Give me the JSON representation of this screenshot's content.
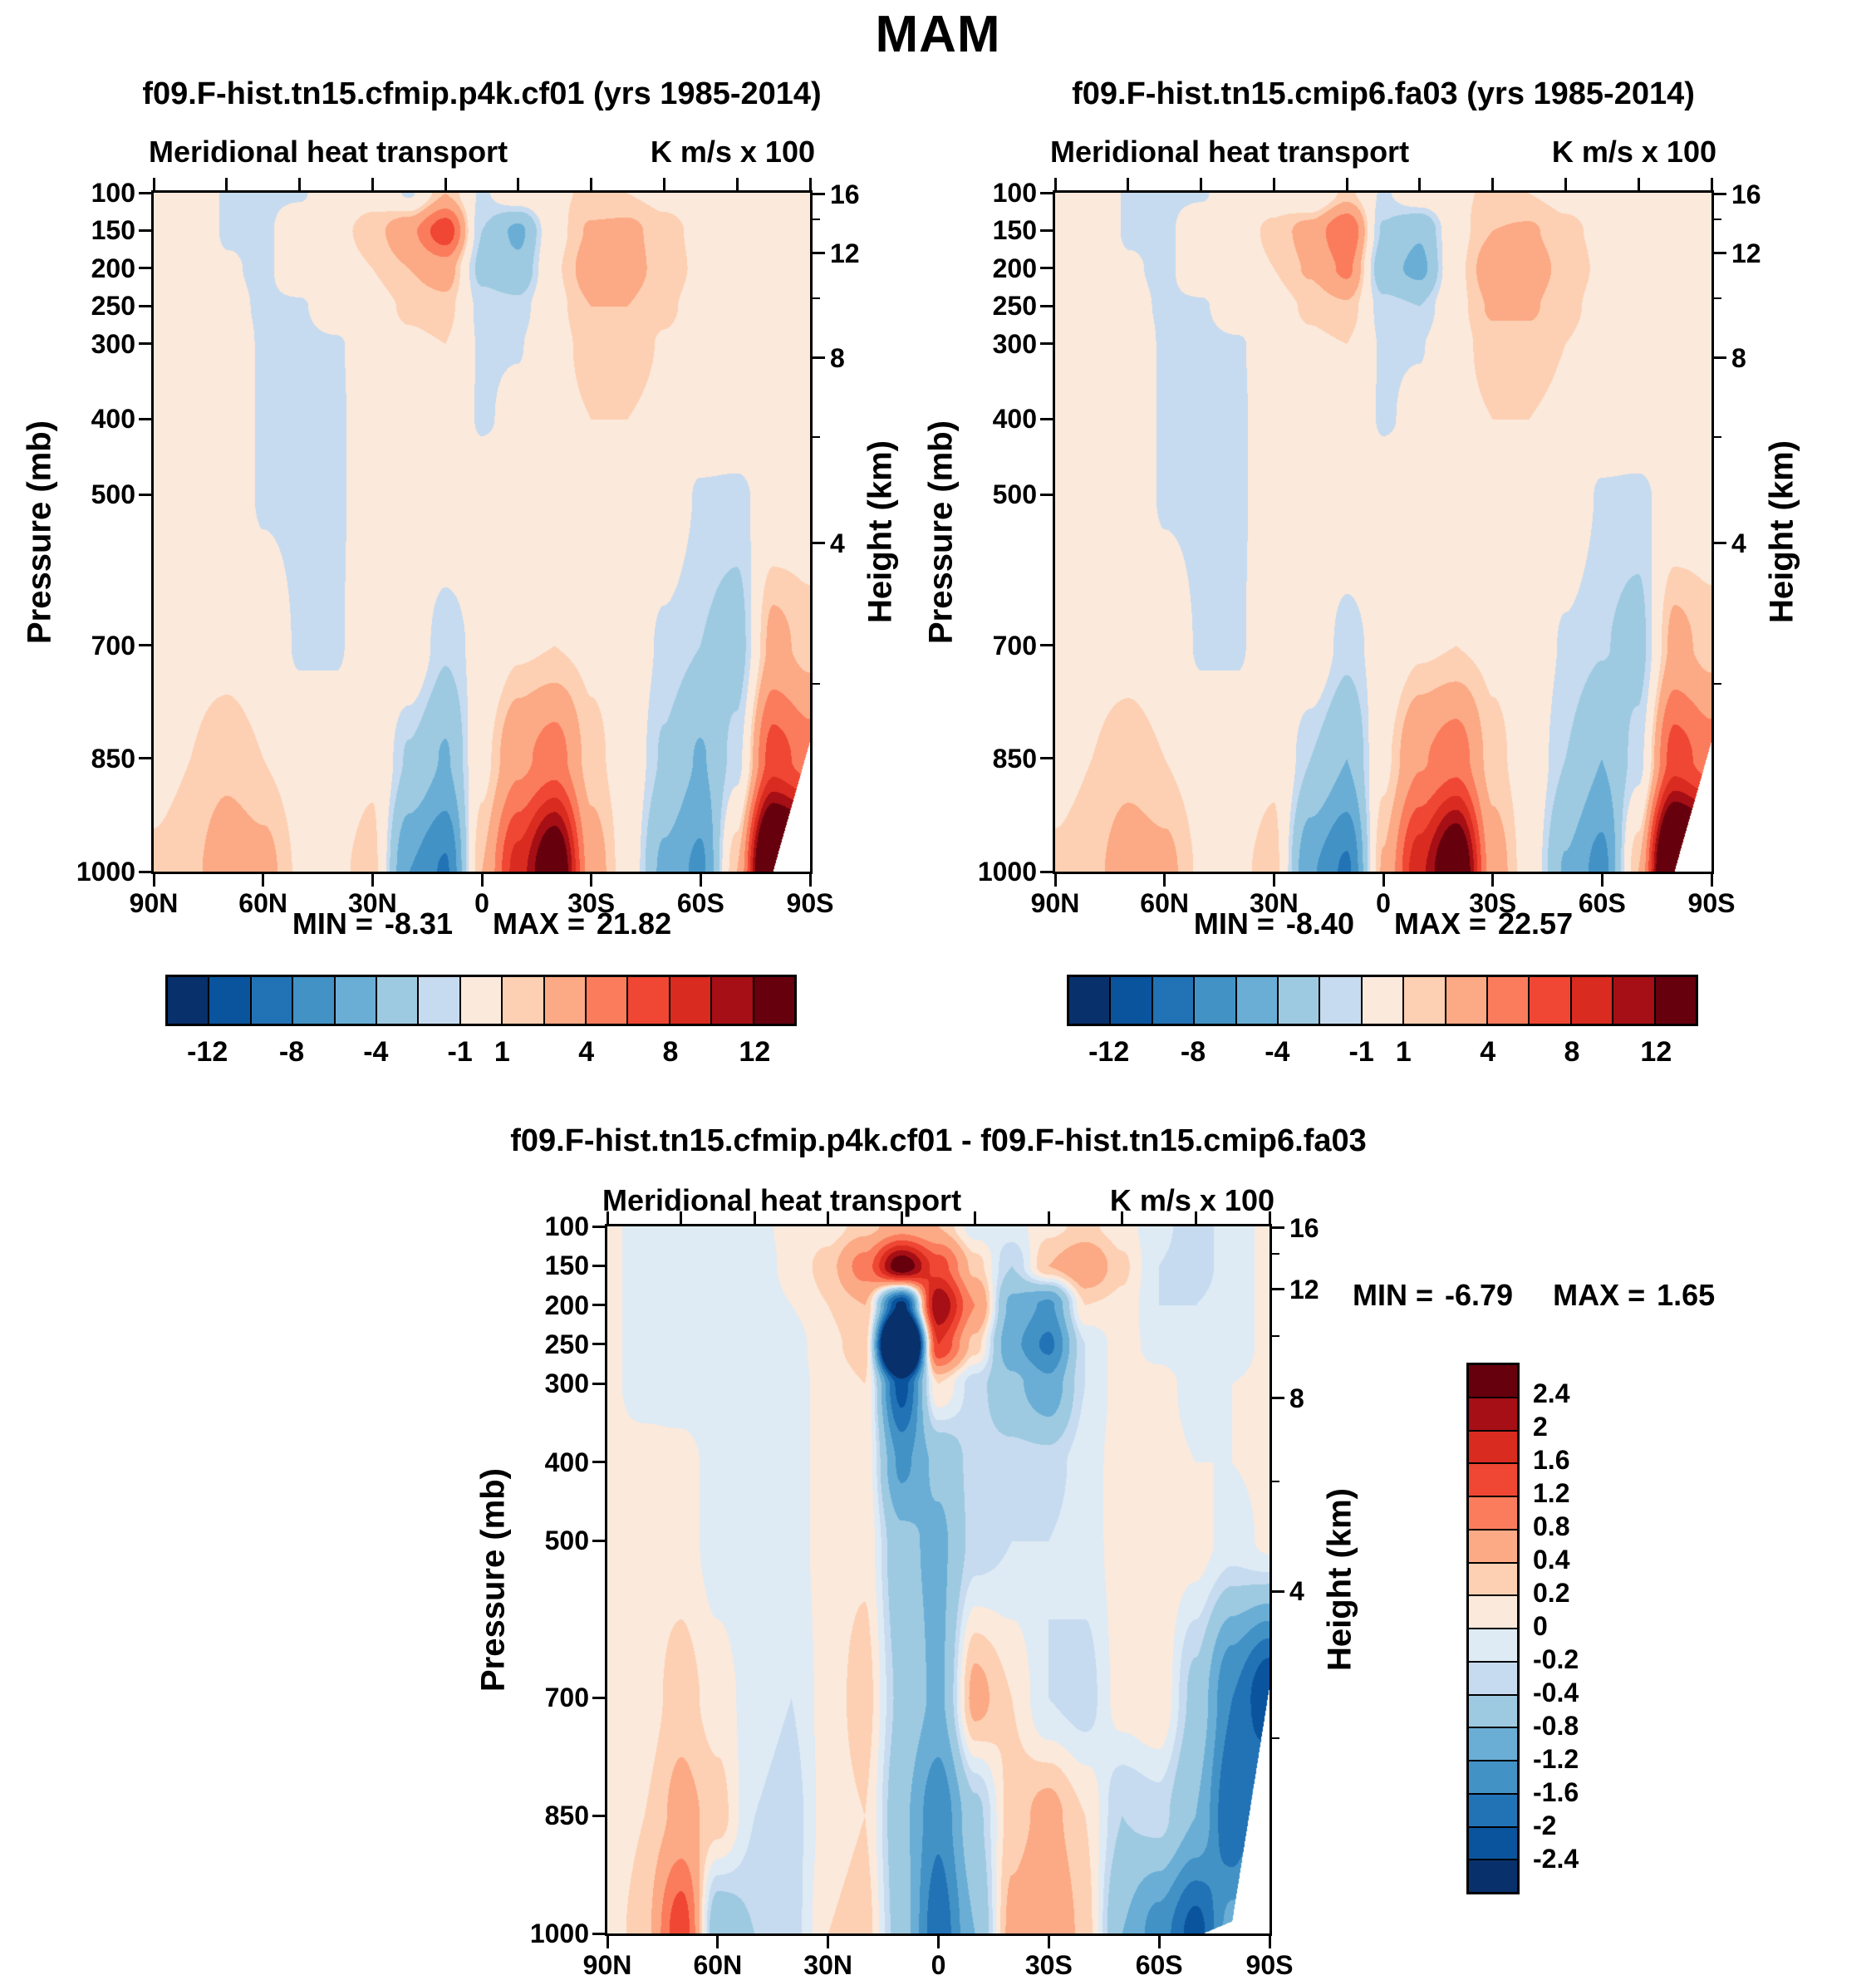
{
  "title": "MAM",
  "axes": {
    "pressure_label": "Pressure (mb)",
    "height_label": "Height (km)",
    "pressure_ticks": [
      100,
      150,
      200,
      250,
      300,
      400,
      500,
      700,
      850,
      1000
    ],
    "height_ticks": [
      16,
      12,
      8,
      4
    ],
    "lat_tick_labels": [
      "90N",
      "60N",
      "30N",
      "0",
      "30S",
      "60S",
      "90S"
    ],
    "lat_tick_values": [
      90,
      60,
      30,
      0,
      -30,
      -60,
      -90
    ]
  },
  "panels": [
    {
      "title": "f09.F-hist.tn15.cfmip.p4k.cf01 (yrs 1985-2014)",
      "subtitle": "Meridional heat transport",
      "units": "K m/s x 100",
      "stats": {
        "min_label": "MIN =",
        "min": "-8.31",
        "max_label": "MAX =",
        "max": "21.82"
      }
    },
    {
      "title": "f09.F-hist.tn15.cmip6.fa03 (yrs 1985-2014)",
      "subtitle": "Meridional heat transport",
      "units": "K m/s x 100",
      "stats": {
        "min_label": "MIN =",
        "min": "-8.40",
        "max_label": "MAX =",
        "max": "22.57"
      }
    },
    {
      "title": "f09.F-hist.tn15.cfmip.p4k.cf01 - f09.F-hist.tn15.cmip6.fa03",
      "subtitle": "Meridional heat transport",
      "units": "K m/s x 100",
      "stats": {
        "min_label": "MIN =",
        "min": "-6.79",
        "max_label": "MAX =",
        "max": "1.65"
      }
    }
  ],
  "colorbars": {
    "main": {
      "orientation": "horizontal",
      "cell_colors": [
        "#08306B",
        "#0A549E",
        "#2272B6",
        "#4292C6",
        "#6AAED6",
        "#9DCAE1",
        "#C6DBEF",
        "#FBE9DC",
        "#FDD0B3",
        "#FCA985",
        "#FB7C5C",
        "#EF4733",
        "#D92B20",
        "#A50F15",
        "#67000D"
      ],
      "tick_labels": [
        "-12",
        "-8",
        "-4",
        "-1",
        "1",
        "4",
        "8",
        "12"
      ],
      "tick_positions_fifteenths": [
        1,
        3,
        5,
        7,
        8,
        10,
        12,
        14
      ]
    },
    "diff": {
      "orientation": "vertical",
      "cell_colors": [
        "#08306B",
        "#0A549E",
        "#2272B6",
        "#4292C6",
        "#6AAED6",
        "#9DCAE1",
        "#C6DBEF",
        "#DEEBF5",
        "#FBE9DC",
        "#FDD0B3",
        "#FCA985",
        "#FB7C5C",
        "#EF4733",
        "#D92B20",
        "#A50F15",
        "#67000D"
      ],
      "tick_labels_top_to_bottom": [
        "2.4",
        "2",
        "1.6",
        "1.2",
        "0.8",
        "0.4",
        "0.2",
        "0",
        "-0.2",
        "-0.4",
        "-0.8",
        "-1.2",
        "-1.6",
        "-2",
        "-2.4"
      ]
    }
  },
  "chart_data": [
    {
      "type": "heatmap",
      "name": "f09.F-hist.tn15.cfmip.p4k.cf01",
      "season": "MAM",
      "variable": "Meridional heat transport",
      "units": "K m/s x 100",
      "x_axis": "latitude, 90N (left) to 90S (right)",
      "y_axis": "pressure (mb), 100 (top) to 1000 (bottom), linear in pressure",
      "min": -8.31,
      "max": 21.82,
      "contour_levels": [
        -12,
        -10,
        -8,
        -6,
        -4,
        -2,
        -1,
        1,
        2,
        4,
        6,
        8,
        10,
        12
      ],
      "lats": [
        90,
        80,
        70,
        60,
        50,
        40,
        30,
        20,
        10,
        0,
        -10,
        -20,
        -30,
        -40,
        -50,
        -60,
        -70,
        -80,
        -90
      ],
      "pressure_levels": [
        100,
        150,
        200,
        250,
        300,
        400,
        500,
        700,
        850,
        1000
      ],
      "surface_pressure": [
        1010,
        1010,
        1010,
        1010,
        1010,
        1010,
        1010,
        1010,
        1010,
        1010,
        1010,
        1010,
        1010,
        1010,
        1010,
        1010,
        1008,
        1000,
        830
      ],
      "values": [
        [
          0.4,
          0.6,
          -1.2,
          -1.3,
          -1.2,
          0.4,
          0.6,
          -1.2,
          2.0,
          -1.2,
          0.3,
          0.8,
          1.2,
          1.0,
          0.6,
          0.4,
          0.3,
          0.2,
          0.2
        ],
        [
          0.3,
          0.5,
          -1.2,
          -1.3,
          0.2,
          0.7,
          1.4,
          3.5,
          7.5,
          -2.0,
          -4.5,
          0.5,
          2.2,
          2.4,
          1.4,
          0.7,
          0.4,
          0.3,
          0.2
        ],
        [
          0.2,
          0.4,
          -0.8,
          -1.3,
          0.2,
          0.5,
          1.0,
          2.0,
          3.0,
          -2.5,
          -3.5,
          0.8,
          2.8,
          2.6,
          1.5,
          0.8,
          0.4,
          0.3,
          0.2
        ],
        [
          0.2,
          0.3,
          -0.5,
          -1.2,
          -1.2,
          0.2,
          0.5,
          1.2,
          1.5,
          -1.4,
          -1.6,
          0.6,
          2.0,
          2.0,
          1.2,
          0.6,
          0.3,
          0.2,
          0.1
        ],
        [
          0.2,
          0.3,
          0.2,
          -1.2,
          -1.4,
          -1.2,
          0.2,
          0.8,
          1.0,
          -1.2,
          -1.1,
          0.5,
          1.5,
          1.5,
          0.9,
          0.5,
          0.3,
          0.2,
          0.1
        ],
        [
          0.2,
          0.3,
          0.2,
          -1.2,
          -1.5,
          -1.2,
          -0.2,
          0.5,
          0.7,
          -1.2,
          -0.5,
          0.5,
          1.0,
          1.0,
          0.7,
          0.3,
          0.2,
          0.1,
          0.1
        ],
        [
          0.2,
          0.3,
          0.2,
          -1.2,
          -1.4,
          -1.2,
          -0.2,
          0.4,
          0.6,
          0.4,
          0.5,
          0.5,
          0.8,
          0.8,
          0.4,
          -1.2,
          -1.3,
          -0.3,
          0.1
        ],
        [
          0.4,
          0.6,
          0.6,
          0.3,
          -1.2,
          -1.2,
          0.3,
          0.4,
          -1.8,
          -0.4,
          0.8,
          1.0,
          0.7,
          0.3,
          -1.3,
          -2.0,
          -2.8,
          2.5,
          1.5
        ],
        [
          0.6,
          1.0,
          1.6,
          1.0,
          0.4,
          0.4,
          0.8,
          -2.2,
          -4.2,
          0.5,
          3.5,
          5.0,
          1.4,
          0.3,
          -2.2,
          -4.2,
          -1.5,
          7.0,
          5.0
        ],
        [
          1.2,
          1.6,
          3.2,
          2.6,
          0.8,
          0.8,
          1.4,
          -6.0,
          -8.3,
          2.0,
          9.0,
          16.0,
          3.0,
          0.3,
          -4.5,
          -6.5,
          2.0,
          21.8,
          18.0
        ]
      ]
    },
    {
      "type": "heatmap",
      "name": "f09.F-hist.tn15.cmip6.fa03",
      "season": "MAM",
      "variable": "Meridional heat transport",
      "units": "K m/s x 100",
      "x_axis": "latitude, 90N (left) to 90S (right)",
      "y_axis": "pressure (mb), 100 (top) to 1000 (bottom), linear in pressure",
      "min": -8.4,
      "max": 22.57,
      "contour_levels": [
        -12,
        -10,
        -8,
        -6,
        -4,
        -2,
        -1,
        1,
        2,
        4,
        6,
        8,
        10,
        12
      ],
      "lats": [
        90,
        80,
        70,
        60,
        50,
        40,
        30,
        20,
        10,
        0,
        -10,
        -20,
        -30,
        -40,
        -50,
        -60,
        -70,
        -80,
        -90
      ],
      "pressure_levels": [
        100,
        150,
        200,
        250,
        300,
        400,
        500,
        700,
        850,
        1000
      ],
      "surface_pressure": [
        1010,
        1010,
        1010,
        1010,
        1010,
        1010,
        1010,
        1010,
        1010,
        1010,
        1010,
        1010,
        1010,
        1010,
        1010,
        1010,
        1008,
        1000,
        830
      ],
      "values": [
        [
          0.4,
          0.6,
          -1.2,
          -1.3,
          -1.2,
          0.4,
          0.5,
          -1.0,
          1.4,
          -1.2,
          0.3,
          0.8,
          1.2,
          1.0,
          0.6,
          0.4,
          0.3,
          0.2,
          0.2
        ],
        [
          0.3,
          0.5,
          -1.2,
          -1.3,
          0.2,
          0.6,
          1.2,
          2.8,
          6.0,
          -2.2,
          -3.8,
          0.5,
          2.0,
          2.2,
          1.3,
          0.7,
          0.4,
          0.3,
          0.2
        ],
        [
          0.2,
          0.4,
          -0.8,
          -1.3,
          0.2,
          0.5,
          1.0,
          2.2,
          4.5,
          -3.2,
          -4.6,
          0.6,
          3.0,
          2.8,
          1.6,
          0.8,
          0.4,
          0.3,
          0.2
        ],
        [
          0.2,
          0.3,
          -0.5,
          -1.2,
          -1.2,
          0.2,
          0.5,
          1.2,
          1.8,
          -1.6,
          -2.0,
          0.6,
          2.2,
          2.2,
          1.3,
          0.6,
          0.3,
          0.2,
          0.1
        ],
        [
          0.2,
          0.3,
          0.2,
          -1.2,
          -1.4,
          -1.2,
          0.2,
          0.8,
          1.0,
          -1.2,
          -1.1,
          0.5,
          1.6,
          1.6,
          1.0,
          0.5,
          0.3,
          0.2,
          0.1
        ],
        [
          0.2,
          0.3,
          0.2,
          -1.2,
          -1.5,
          -1.2,
          -0.2,
          0.5,
          0.7,
          -1.2,
          -0.5,
          0.5,
          1.0,
          1.0,
          0.7,
          0.3,
          0.2,
          0.1,
          0.1
        ],
        [
          0.2,
          0.3,
          0.2,
          -1.2,
          -1.4,
          -1.2,
          -0.2,
          0.4,
          0.6,
          0.4,
          0.5,
          0.5,
          0.8,
          0.8,
          0.4,
          -1.2,
          -1.3,
          -0.3,
          0.1
        ],
        [
          0.4,
          0.6,
          0.6,
          0.3,
          -1.2,
          -1.2,
          0.3,
          0.4,
          -1.6,
          -0.3,
          0.8,
          1.0,
          0.7,
          0.3,
          -1.2,
          -1.9,
          -2.6,
          2.5,
          1.5
        ],
        [
          0.6,
          1.0,
          1.5,
          1.0,
          0.4,
          0.4,
          0.8,
          -2.0,
          -4.0,
          0.6,
          3.8,
          5.2,
          1.4,
          0.3,
          -2.0,
          -4.0,
          -1.5,
          7.0,
          5.0
        ],
        [
          1.2,
          1.6,
          3.0,
          2.5,
          0.8,
          0.8,
          1.4,
          -5.8,
          -8.4,
          2.2,
          9.5,
          16.5,
          3.0,
          0.3,
          -4.2,
          -6.8,
          2.0,
          22.6,
          18.0
        ]
      ]
    },
    {
      "type": "heatmap",
      "name": "f09.F-hist.tn15.cfmip.p4k.cf01 - f09.F-hist.tn15.cmip6.fa03",
      "season": "MAM",
      "variable": "Meridional heat transport difference",
      "units": "K m/s x 100",
      "x_axis": "latitude, 90N (left) to 90S (right)",
      "y_axis": "pressure (mb), 100 (top) to 1000 (bottom), linear in pressure",
      "min": -6.79,
      "max": 1.65,
      "contour_levels": [
        -2.4,
        -2,
        -1.6,
        -1.2,
        -0.8,
        -0.4,
        -0.2,
        0,
        0.2,
        0.4,
        0.8,
        1.2,
        1.6,
        2,
        2.4
      ],
      "lats": [
        90,
        80,
        70,
        60,
        50,
        40,
        30,
        20,
        10,
        0,
        -10,
        -20,
        -30,
        -40,
        -50,
        -60,
        -70,
        -80,
        -90
      ],
      "pressure_levels": [
        100,
        150,
        200,
        250,
        300,
        400,
        500,
        700,
        850,
        1000
      ],
      "surface_pressure": [
        1010,
        1010,
        1010,
        1010,
        1010,
        1010,
        1010,
        1010,
        1010,
        1010,
        1010,
        1010,
        1010,
        1010,
        1010,
        1010,
        1005,
        985,
        690
      ],
      "values": [
        [
          0.05,
          -0.1,
          -0.1,
          -0.1,
          -0.05,
          0.05,
          0.1,
          0.3,
          0.6,
          0.4,
          -0.1,
          -0.1,
          0.15,
          0.25,
          0.1,
          -0.15,
          -0.3,
          -0.1,
          0.05
        ],
        [
          0.05,
          -0.1,
          -0.15,
          -0.15,
          -0.1,
          0.05,
          0.3,
          1.0,
          2.8,
          1.4,
          0.3,
          -0.4,
          0.4,
          0.7,
          0.25,
          -0.2,
          -0.3,
          -0.1,
          0.05
        ],
        [
          0.05,
          -0.1,
          -0.15,
          -0.15,
          -0.1,
          0.0,
          0.2,
          0.4,
          -2.6,
          2.4,
          0.8,
          -0.9,
          -1.3,
          0.2,
          0.15,
          -0.2,
          -0.2,
          -0.1,
          0.05
        ],
        [
          0.05,
          -0.1,
          -0.15,
          -0.2,
          -0.15,
          -0.1,
          0.15,
          0.3,
          -6.6,
          1.6,
          0.3,
          -1.1,
          -1.7,
          -0.2,
          0.1,
          -0.1,
          -0.2,
          -0.1,
          0.05
        ],
        [
          0.05,
          -0.1,
          -0.15,
          -0.2,
          -0.15,
          -0.1,
          0.1,
          0.2,
          -2.2,
          0.2,
          -0.3,
          -0.7,
          -1.1,
          -0.2,
          0.1,
          0.1,
          -0.1,
          0.0,
          0.05
        ],
        [
          0.05,
          0.1,
          0.1,
          -0.1,
          -0.2,
          -0.1,
          0.1,
          0.15,
          -1.3,
          -0.7,
          -0.3,
          -0.3,
          -0.3,
          -0.1,
          0.1,
          0.1,
          0.0,
          0.0,
          0.05
        ],
        [
          0.05,
          0.1,
          0.1,
          -0.1,
          -0.2,
          -0.1,
          0.1,
          0.15,
          -0.7,
          -0.9,
          -0.3,
          -0.2,
          -0.2,
          -0.1,
          0.1,
          0.15,
          0.1,
          -0.1,
          0.05
        ],
        [
          0.05,
          0.1,
          0.3,
          0.1,
          -0.1,
          -0.2,
          0.1,
          0.3,
          -0.5,
          -0.9,
          0.5,
          0.2,
          -0.2,
          -0.3,
          0.1,
          0.2,
          -0.5,
          -1.6,
          -2.4
        ],
        [
          0.05,
          0.2,
          0.5,
          0.3,
          -0.2,
          -0.3,
          0.1,
          0.2,
          -0.7,
          -1.5,
          -0.5,
          0.3,
          0.5,
          0.2,
          -0.4,
          -0.3,
          -0.8,
          -2.0,
          -1.2
        ],
        [
          0.1,
          0.3,
          1.5,
          -0.7,
          -0.4,
          -0.3,
          0.2,
          0.3,
          -0.6,
          -1.9,
          -0.8,
          0.5,
          0.8,
          0.3,
          -0.8,
          -1.4,
          -2.2,
          -1.0,
          0.0
        ]
      ]
    }
  ]
}
